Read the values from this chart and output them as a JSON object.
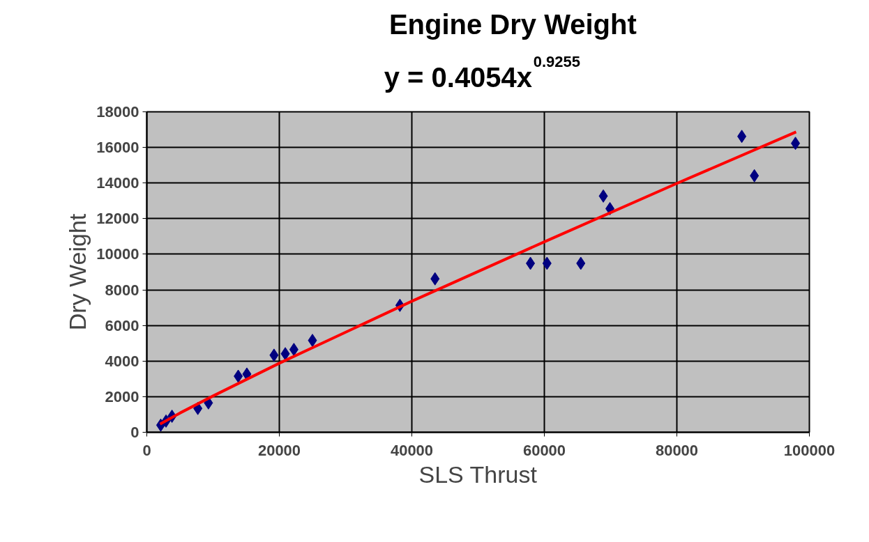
{
  "chart_data": {
    "type": "scatter",
    "title": "Engine Dry Weight",
    "subtitle": "y = 0.4054x$^{0.9255}$",
    "xlabel": "SLS Thrust",
    "ylabel": "Dry Weight",
    "xlim": [
      0,
      100000
    ],
    "ylim": [
      0,
      18000
    ],
    "xticks": [
      0,
      20000,
      40000,
      60000,
      80000,
      100000
    ],
    "yticks": [
      0,
      2000,
      4000,
      6000,
      8000,
      10000,
      12000,
      14000,
      16000,
      18000
    ],
    "grid": true,
    "series": [
      {
        "color": "#000080",
        "marker": "diamond",
        "x": [
          2100,
          2900,
          3800,
          7700,
          9300,
          13800,
          15100,
          19200,
          20900,
          22200,
          25000,
          38200,
          43500,
          57900,
          60400,
          65500,
          68900,
          69900,
          89800,
          91700,
          97900
        ],
        "values": [
          400,
          630,
          900,
          1340,
          1650,
          3150,
          3270,
          4330,
          4410,
          4650,
          5160,
          7130,
          8620,
          9490,
          9490,
          9490,
          13270,
          12560,
          16620,
          14410,
          16230
        ]
      },
      {
        "type": "line",
        "color": "#ff0000",
        "x": [
          2000,
          5000,
          10000,
          20000,
          40000,
          60000,
          80000,
          98000
        ],
        "values": [
          460,
          1080,
          2040,
          3880,
          7360,
          10700,
          13980,
          16870
        ]
      }
    ]
  }
}
